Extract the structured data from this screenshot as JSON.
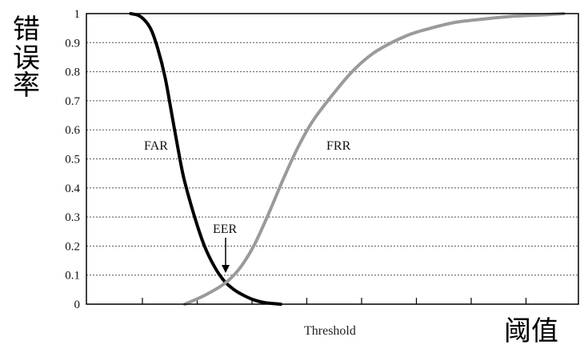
{
  "chart_data": {
    "type": "line",
    "title": "",
    "xlabel": "Threshold",
    "ylabel": "",
    "ylim": [
      0,
      1
    ],
    "xlim": [
      0,
      1
    ],
    "yticks": [
      "0",
      "0.1",
      "0.2",
      "0.3",
      "0.4",
      "0.5",
      "0.6",
      "0.7",
      "0.8",
      "0.9",
      "1"
    ],
    "grid": true,
    "series": [
      {
        "name": "FAR",
        "color": "#000000",
        "x": [
          0.09,
          0.11,
          0.13,
          0.145,
          0.16,
          0.175,
          0.19,
          0.2,
          0.22,
          0.24,
          0.26,
          0.28,
          0.3,
          0.32,
          0.34,
          0.36,
          0.38,
          0.395
        ],
        "y": [
          1.0,
          0.99,
          0.95,
          0.88,
          0.78,
          0.64,
          0.5,
          0.42,
          0.3,
          0.2,
          0.13,
          0.08,
          0.05,
          0.03,
          0.015,
          0.006,
          0.002,
          0.0
        ]
      },
      {
        "name": "FRR",
        "color": "#9a9a9a",
        "x": [
          0.2,
          0.24,
          0.28,
          0.31,
          0.34,
          0.37,
          0.4,
          0.43,
          0.46,
          0.5,
          0.54,
          0.58,
          0.62,
          0.66,
          0.7,
          0.75,
          0.8,
          0.86,
          0.92,
          0.97
        ],
        "y": [
          0.0,
          0.03,
          0.07,
          0.12,
          0.2,
          0.31,
          0.43,
          0.54,
          0.63,
          0.72,
          0.8,
          0.86,
          0.9,
          0.93,
          0.95,
          0.97,
          0.98,
          0.99,
          0.995,
          1.0
        ]
      }
    ],
    "annotations": [
      {
        "text": "FAR",
        "x": 0.145,
        "y": 0.55
      },
      {
        "text": "FRR",
        "x": 0.49,
        "y": 0.55
      },
      {
        "text": "EER",
        "x": 0.28,
        "y": 0.25,
        "arrow_to": [
          0.29,
          0.1
        ]
      }
    ]
  },
  "labels": {
    "y_axis_cn": [
      "错",
      "误",
      "率"
    ],
    "x_axis_cn": "阈值"
  }
}
